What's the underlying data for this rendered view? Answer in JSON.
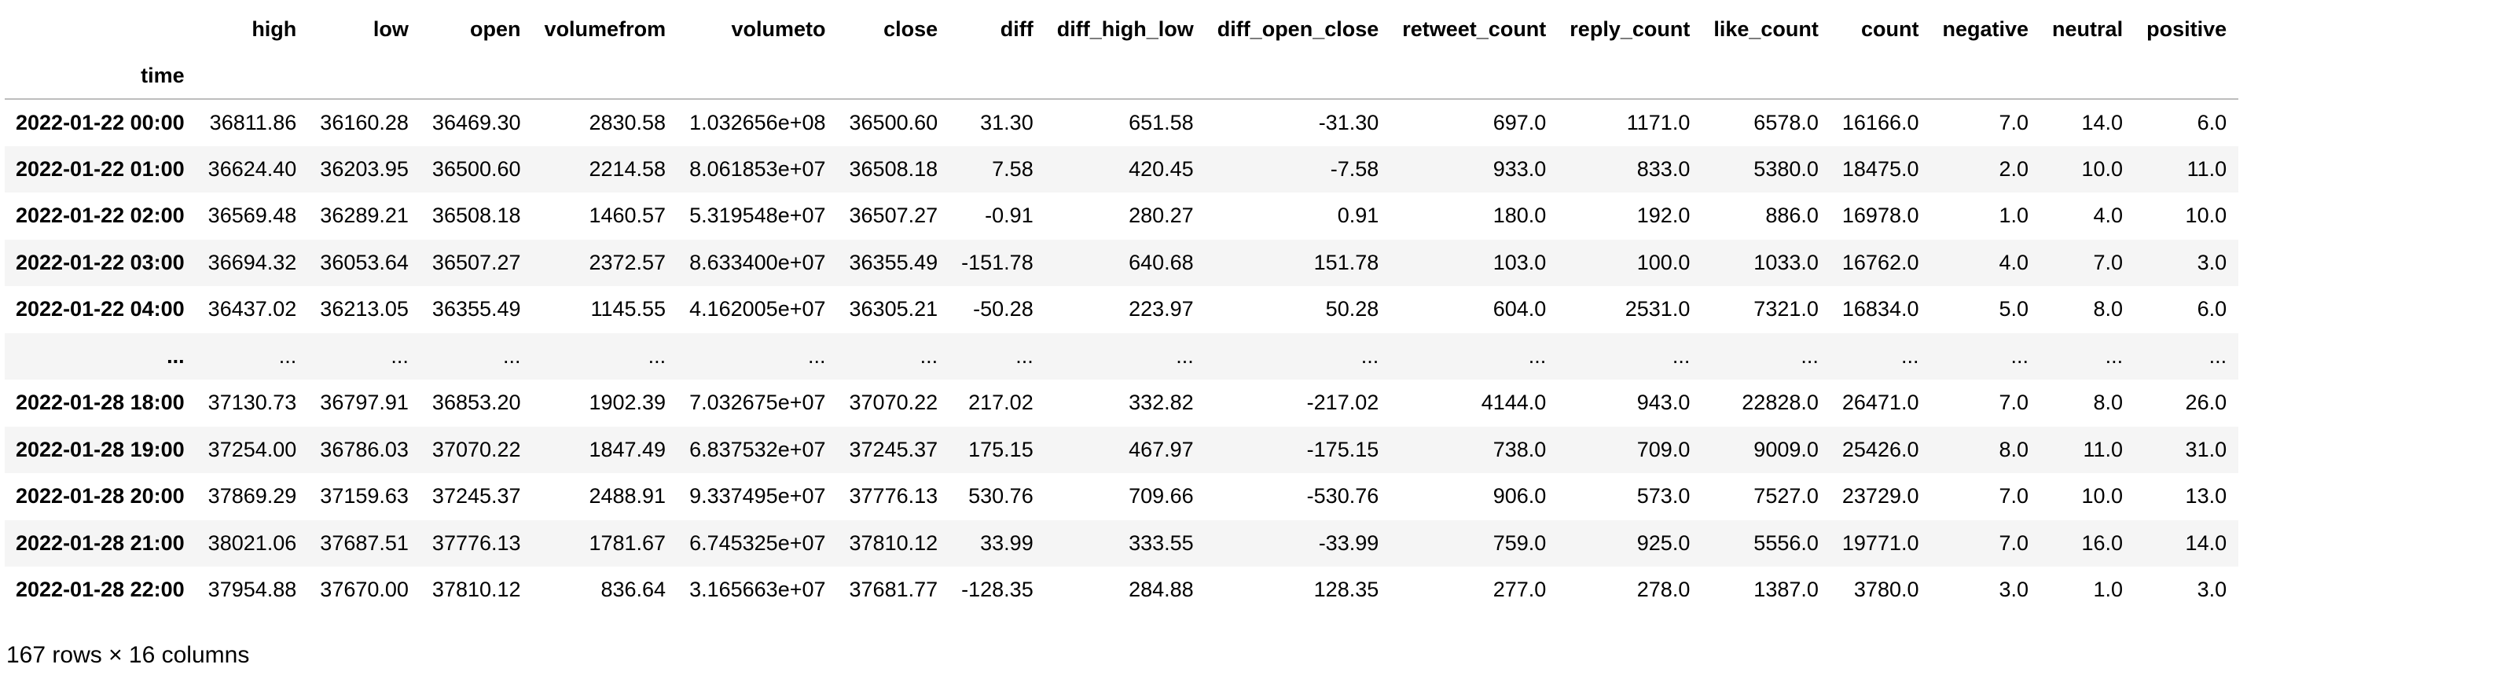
{
  "index_name": "time",
  "columns": [
    "high",
    "low",
    "open",
    "volumefrom",
    "volumeto",
    "close",
    "diff",
    "diff_high_low",
    "diff_open_close",
    "retweet_count",
    "reply_count",
    "like_count",
    "count",
    "negative",
    "neutral",
    "positive"
  ],
  "rows": [
    {
      "index": "2022-01-22 00:00",
      "values": [
        "36811.86",
        "36160.28",
        "36469.30",
        "2830.58",
        "1.032656e+08",
        "36500.60",
        "31.30",
        "651.58",
        "-31.30",
        "697.0",
        "1171.0",
        "6578.0",
        "16166.0",
        "7.0",
        "14.0",
        "6.0"
      ]
    },
    {
      "index": "2022-01-22 01:00",
      "values": [
        "36624.40",
        "36203.95",
        "36500.60",
        "2214.58",
        "8.061853e+07",
        "36508.18",
        "7.58",
        "420.45",
        "-7.58",
        "933.0",
        "833.0",
        "5380.0",
        "18475.0",
        "2.0",
        "10.0",
        "11.0"
      ]
    },
    {
      "index": "2022-01-22 02:00",
      "values": [
        "36569.48",
        "36289.21",
        "36508.18",
        "1460.57",
        "5.319548e+07",
        "36507.27",
        "-0.91",
        "280.27",
        "0.91",
        "180.0",
        "192.0",
        "886.0",
        "16978.0",
        "1.0",
        "4.0",
        "10.0"
      ]
    },
    {
      "index": "2022-01-22 03:00",
      "values": [
        "36694.32",
        "36053.64",
        "36507.27",
        "2372.57",
        "8.633400e+07",
        "36355.49",
        "-151.78",
        "640.68",
        "151.78",
        "103.0",
        "100.0",
        "1033.0",
        "16762.0",
        "4.0",
        "7.0",
        "3.0"
      ]
    },
    {
      "index": "2022-01-22 04:00",
      "values": [
        "36437.02",
        "36213.05",
        "36355.49",
        "1145.55",
        "4.162005e+07",
        "36305.21",
        "-50.28",
        "223.97",
        "50.28",
        "604.0",
        "2531.0",
        "7321.0",
        "16834.0",
        "5.0",
        "8.0",
        "6.0"
      ]
    },
    {
      "index": "...",
      "values": [
        "...",
        "...",
        "...",
        "...",
        "...",
        "...",
        "...",
        "...",
        "...",
        "...",
        "...",
        "...",
        "...",
        "...",
        "...",
        "..."
      ]
    },
    {
      "index": "2022-01-28 18:00",
      "values": [
        "37130.73",
        "36797.91",
        "36853.20",
        "1902.39",
        "7.032675e+07",
        "37070.22",
        "217.02",
        "332.82",
        "-217.02",
        "4144.0",
        "943.0",
        "22828.0",
        "26471.0",
        "7.0",
        "8.0",
        "26.0"
      ]
    },
    {
      "index": "2022-01-28 19:00",
      "values": [
        "37254.00",
        "36786.03",
        "37070.22",
        "1847.49",
        "6.837532e+07",
        "37245.37",
        "175.15",
        "467.97",
        "-175.15",
        "738.0",
        "709.0",
        "9009.0",
        "25426.0",
        "8.0",
        "11.0",
        "31.0"
      ]
    },
    {
      "index": "2022-01-28 20:00",
      "values": [
        "37869.29",
        "37159.63",
        "37245.37",
        "2488.91",
        "9.337495e+07",
        "37776.13",
        "530.76",
        "709.66",
        "-530.76",
        "906.0",
        "573.0",
        "7527.0",
        "23729.0",
        "7.0",
        "10.0",
        "13.0"
      ]
    },
    {
      "index": "2022-01-28 21:00",
      "values": [
        "38021.06",
        "37687.51",
        "37776.13",
        "1781.67",
        "6.745325e+07",
        "37810.12",
        "33.99",
        "333.55",
        "-33.99",
        "759.0",
        "925.0",
        "5556.0",
        "19771.0",
        "7.0",
        "16.0",
        "14.0"
      ]
    },
    {
      "index": "2022-01-28 22:00",
      "values": [
        "37954.88",
        "37670.00",
        "37810.12",
        "836.64",
        "3.165663e+07",
        "37681.77",
        "-128.35",
        "284.88",
        "128.35",
        "277.0",
        "278.0",
        "1387.0",
        "3780.0",
        "3.0",
        "1.0",
        "3.0"
      ]
    }
  ],
  "shape_text": "167 rows × 16 columns"
}
